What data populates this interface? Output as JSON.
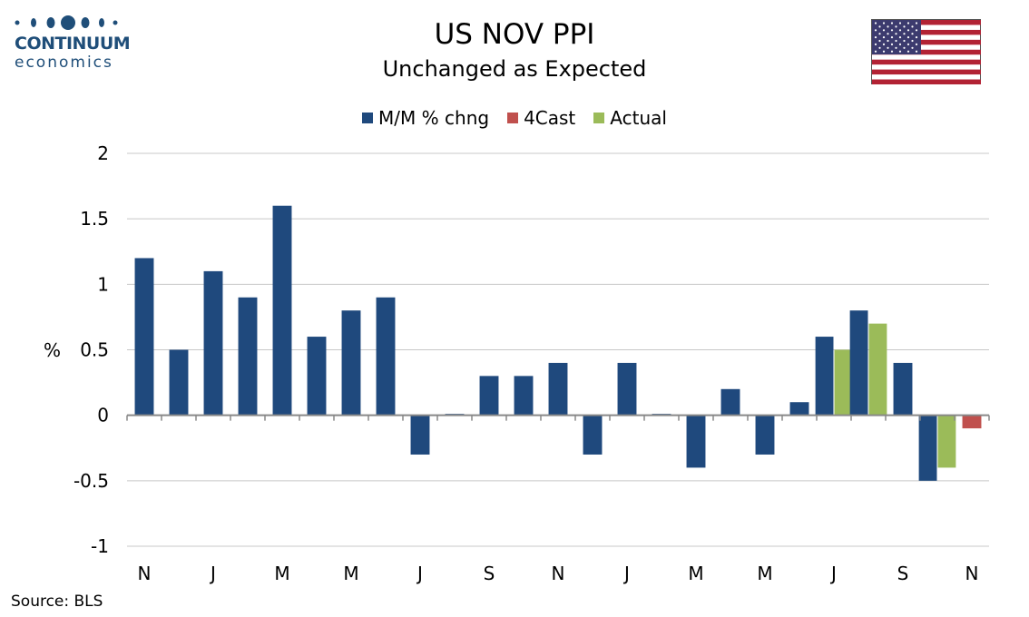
{
  "brand": {
    "line1": "CONTINUUM",
    "line2": "economics"
  },
  "colors": {
    "mm": "#1f497d",
    "forecast": "#c0504d",
    "actual": "#9bbb59",
    "brand": "#1f4e79"
  },
  "source": "Source: BLS",
  "chart_data": {
    "type": "bar",
    "title": "US NOV PPI",
    "subtitle": "Unchanged as Expected",
    "ylabel": "%",
    "xlabel": "",
    "ylim": [
      -1,
      2
    ],
    "yticks": [
      "2",
      "1.5",
      "1",
      "0.5",
      "0",
      "-0.5",
      "-1"
    ],
    "ytick_values": [
      2,
      1.5,
      1,
      0.5,
      0,
      -0.5,
      -1
    ],
    "grid": true,
    "legend": "top-center",
    "xtick_labels": [
      "N",
      "J",
      "M",
      "M",
      "J",
      "S",
      "N",
      "J",
      "M",
      "M",
      "J",
      "S",
      "N"
    ],
    "xtick_positions": [
      0,
      2,
      4,
      6,
      8,
      10,
      12,
      14,
      16,
      18,
      20,
      22,
      24
    ],
    "series": [
      {
        "name": "M/M % chng",
        "color": "#1f497d",
        "values": [
          1.2,
          0.5,
          1.1,
          0.9,
          1.6,
          0.6,
          0.8,
          0.9,
          -0.3,
          0.0,
          0.3,
          0.3,
          0.4,
          -0.3,
          0.4,
          0.0,
          -0.4,
          0.2,
          -0.3,
          0.1,
          0.6,
          0.8,
          0.4,
          -0.5,
          null
        ]
      },
      {
        "name": "4Cast",
        "color": "#c0504d",
        "values": [
          null,
          null,
          null,
          null,
          null,
          null,
          null,
          null,
          null,
          null,
          null,
          null,
          null,
          null,
          null,
          null,
          null,
          null,
          null,
          null,
          null,
          null,
          null,
          null,
          -0.1
        ]
      },
      {
        "name": "Actual",
        "color": "#9bbb59",
        "values": [
          null,
          null,
          null,
          null,
          null,
          null,
          null,
          null,
          null,
          null,
          null,
          null,
          null,
          null,
          null,
          null,
          null,
          null,
          null,
          null,
          0.5,
          0.7,
          null,
          -0.4,
          null
        ]
      }
    ]
  }
}
